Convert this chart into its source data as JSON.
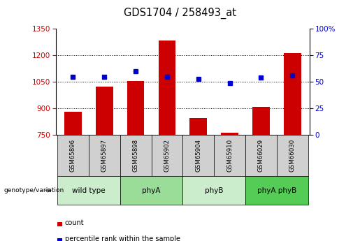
{
  "title": "GDS1704 / 258493_at",
  "samples": [
    "GSM65896",
    "GSM65897",
    "GSM65898",
    "GSM65902",
    "GSM65904",
    "GSM65910",
    "GSM66029",
    "GSM66030"
  ],
  "counts": [
    880,
    1022,
    1055,
    1285,
    845,
    762,
    910,
    1213
  ],
  "percentiles": [
    55,
    55,
    60,
    55,
    53,
    49,
    54,
    56
  ],
  "groups": [
    {
      "label": "wild type",
      "start": 0,
      "end": 2,
      "color": "#ccedcc"
    },
    {
      "label": "phyA",
      "start": 2,
      "end": 4,
      "color": "#99dd99"
    },
    {
      "label": "phyB",
      "start": 4,
      "end": 6,
      "color": "#ccedcc"
    },
    {
      "label": "phyA phyB",
      "start": 6,
      "end": 8,
      "color": "#55cc55"
    }
  ],
  "bar_color": "#cc0000",
  "dot_color": "#0000cc",
  "ylim_left": [
    750,
    1350
  ],
  "ylim_right": [
    0,
    100
  ],
  "yticks_left": [
    750,
    900,
    1050,
    1200,
    1350
  ],
  "yticks_right": [
    0,
    25,
    50,
    75,
    100
  ],
  "ytick_labels_right": [
    "0",
    "25",
    "50",
    "75",
    "100%"
  ],
  "grid_yticks": [
    900,
    1050,
    1200
  ],
  "grid_color": "#000000",
  "bg_color": "#ffffff",
  "sample_bg": "#d0d0d0",
  "legend_count_label": "count",
  "legend_pct_label": "percentile rank within the sample",
  "genotype_label": "genotype/variation"
}
